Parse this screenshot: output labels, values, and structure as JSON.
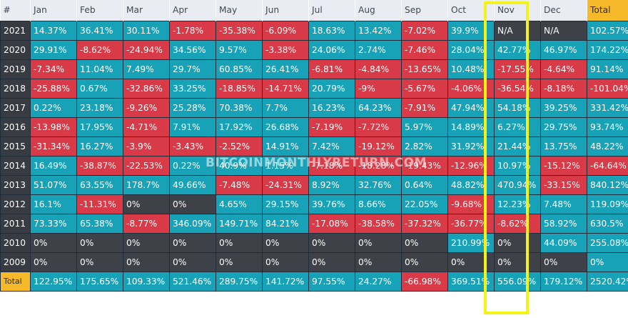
{
  "header": {
    "corner": "#",
    "months": [
      "Jan",
      "Feb",
      "Mar",
      "Apr",
      "May",
      "Jun",
      "Jul",
      "Aug",
      "Sep",
      "Oct",
      "Nov",
      "Dec"
    ],
    "total": "Total"
  },
  "watermark": "BITCOINMONTHLYRETURN.COM",
  "highlighted_column": "Nov",
  "rows": [
    {
      "year": "2021",
      "cells": [
        "14.37%",
        "36.41%",
        "30.11%",
        "-1.78%",
        "-35.38%",
        "-6.09%",
        "18.63%",
        "13.42%",
        "-7.02%",
        "39.9%",
        "N/A",
        "N/A"
      ],
      "total": "102.57%"
    },
    {
      "year": "2020",
      "cells": [
        "29.91%",
        "-8.62%",
        "-24.94%",
        "34.56%",
        "9.57%",
        "-3.38%",
        "24.06%",
        "2.74%",
        "-7.46%",
        "28.04%",
        "42.77%",
        "46.97%"
      ],
      "total": "174.22%"
    },
    {
      "year": "2019",
      "cells": [
        "-7.34%",
        "11.04%",
        "7.49%",
        "29.7%",
        "60.85%",
        "26.41%",
        "-6.81%",
        "-4.84%",
        "-13.65%",
        "10.48%",
        "-17.55%",
        "-4.64%"
      ],
      "total": "91.14%"
    },
    {
      "year": "2018",
      "cells": [
        "-25.88%",
        "0.67%",
        "-32.86%",
        "33.25%",
        "-18.85%",
        "-14.71%",
        "20.79%",
        "-9%",
        "-5.67%",
        "-4.06%",
        "-36.54%",
        "-8.18%"
      ],
      "total": "-101.04%"
    },
    {
      "year": "2017",
      "cells": [
        "0.22%",
        "23.18%",
        "-9.26%",
        "25.28%",
        "70.38%",
        "7.7%",
        "16.23%",
        "64.23%",
        "-7.91%",
        "47.94%",
        "54.18%",
        "39.25%"
      ],
      "total": "331.42%"
    },
    {
      "year": "2016",
      "cells": [
        "-13.98%",
        "17.95%",
        "-4.71%",
        "7.91%",
        "17.92%",
        "26.68%",
        "-7.19%",
        "-7.72%",
        "5.97%",
        "14.89%",
        "6.27%",
        "29.75%"
      ],
      "total": "93.74%"
    },
    {
      "year": "2015",
      "cells": [
        "-31.34%",
        "16.27%",
        "-3.9%",
        "-3.43%",
        "-2.52%",
        "14.91%",
        "7.42%",
        "-19.12%",
        "2.82%",
        "31.92%",
        "21.44%",
        "13.75%"
      ],
      "total": "48.22%"
    },
    {
      "year": "2014",
      "cells": [
        "16.49%",
        "-38.87%",
        "-22.53%",
        "0.22%",
        "40.9%",
        "1.15%",
        "-7.18%",
        "-18.28%",
        "-19.43%",
        "-12.96%",
        "10.97%",
        "-15.12%"
      ],
      "total": "-64.64%"
    },
    {
      "year": "2013",
      "cells": [
        "51.07%",
        "63.55%",
        "178.7%",
        "49.66%",
        "-7.48%",
        "-24.31%",
        "8.92%",
        "32.76%",
        "0.64%",
        "48.82%",
        "470.94%",
        "-33.15%"
      ],
      "total": "840.12%"
    },
    {
      "year": "2012",
      "cells": [
        "16.1%",
        "-11.31%",
        "0%",
        "0%",
        "4.65%",
        "29.15%",
        "39.76%",
        "8.66%",
        "22.05%",
        "-9.68%",
        "12.23%",
        "7.48%"
      ],
      "total": "119.09%"
    },
    {
      "year": "2011",
      "cells": [
        "73.33%",
        "65.38%",
        "-8.77%",
        "346.09%",
        "149.71%",
        "84.21%",
        "-17.08%",
        "-38.58%",
        "-37.32%",
        "-36.77%",
        "-8.62%",
        "58.92%"
      ],
      "total": "630.5%"
    },
    {
      "year": "2010",
      "cells": [
        "0%",
        "0%",
        "0%",
        "0%",
        "0%",
        "0%",
        "0%",
        "0%",
        "0%",
        "210.99%",
        "0%",
        "44.09%"
      ],
      "total": "255.08%"
    },
    {
      "year": "2009",
      "cells": [
        "0%",
        "0%",
        "0%",
        "0%",
        "0%",
        "0%",
        "0%",
        "0%",
        "0%",
        "0%",
        "0%",
        "0%"
      ],
      "total": "0%"
    }
  ],
  "totals": {
    "label": "Total",
    "cells": [
      "122.95%",
      "175.65%",
      "109.33%",
      "521.46%",
      "289.75%",
      "141.72%",
      "97.55%",
      "24.27%",
      "-66.98%",
      "369.51%",
      "556.09%",
      "179.12%"
    ],
    "total": "2520.42%"
  },
  "colors": {
    "positive": "#18a2b7",
    "negative": "#d83a47",
    "zero": "#3e4147",
    "accent": "#f5b92a",
    "highlight": "#f3f31a"
  }
}
